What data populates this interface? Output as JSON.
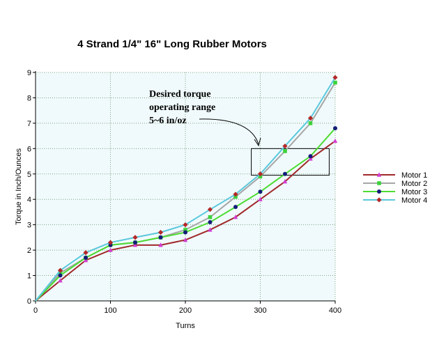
{
  "chart_data": {
    "type": "line",
    "title": "4 Strand 1/4\" 16\" Long Rubber Motors",
    "xlabel": "Turns",
    "ylabel": "Torque in Inch/Ounces",
    "xlim": [
      0,
      400
    ],
    "ylim": [
      0,
      9
    ],
    "xticks": [
      "0",
      "100",
      "200",
      "300",
      "400"
    ],
    "yticks": [
      "0",
      "1",
      "2",
      "3",
      "4",
      "5",
      "6",
      "7",
      "8",
      "9"
    ],
    "grid": true,
    "legend_position": "right",
    "x": [
      0,
      33,
      67,
      100,
      133,
      167,
      200,
      233,
      267,
      300,
      333,
      367,
      400
    ],
    "series": [
      {
        "name": "Motor 1",
        "color": "#a0282a",
        "marker": "triangle",
        "marker_color": "#d23cd2",
        "values": [
          0,
          0.8,
          1.6,
          2.0,
          2.2,
          2.2,
          2.4,
          2.8,
          3.3,
          4.0,
          4.7,
          5.6,
          6.3
        ]
      },
      {
        "name": "Motor 2",
        "color": "#a6a6a6",
        "marker": "square",
        "marker_color": "#3cd23c",
        "values": [
          0,
          1.1,
          1.7,
          2.2,
          2.3,
          2.5,
          2.8,
          3.3,
          4.1,
          4.9,
          5.9,
          7.0,
          8.6
        ]
      },
      {
        "name": "Motor 3",
        "color": "#4cdc32",
        "marker": "circle",
        "marker_color": "#141e78",
        "values": [
          0,
          1.0,
          1.7,
          2.2,
          2.3,
          2.5,
          2.7,
          3.1,
          3.7,
          4.3,
          5.0,
          5.7,
          6.8
        ]
      },
      {
        "name": "Motor 4",
        "color": "#5ac8dc",
        "marker": "diamond",
        "marker_color": "#b42828",
        "values": [
          0,
          1.2,
          1.9,
          2.3,
          2.5,
          2.7,
          3.0,
          3.6,
          4.2,
          5.0,
          6.1,
          7.2,
          8.8
        ]
      }
    ],
    "annotation": {
      "lines": [
        "Desired torque",
        "operating range",
        "5~6 in/oz"
      ],
      "box_x": [
        288,
        392
      ],
      "box_y": [
        4.95,
        6.0
      ]
    },
    "colors": {
      "plot_background": "#f0fafc",
      "grid": "#7fa17f"
    }
  }
}
